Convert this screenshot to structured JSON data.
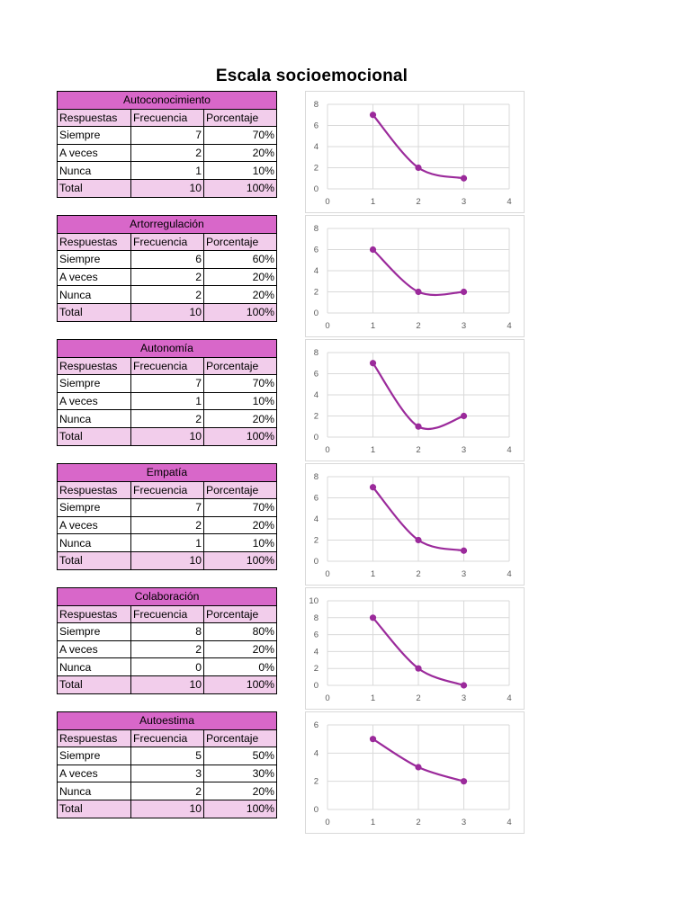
{
  "title": "Escala socioemocional",
  "column_headers": [
    "Respuestas",
    "Frecuencia",
    "Porcentaje"
  ],
  "colors": {
    "accent": "#d867c9",
    "light": "#f2cdeb",
    "line": "#9b2a9b",
    "grid": "#d9d9d9"
  },
  "sections": [
    {
      "name": "Autoconocimiento",
      "rows": [
        [
          "Siempre",
          "7",
          "70%"
        ],
        [
          "A veces",
          "2",
          "20%"
        ],
        [
          "Nunca",
          "1",
          "10%"
        ]
      ],
      "total": [
        "Total",
        "10",
        "100%"
      ]
    },
    {
      "name": "Artorregulación",
      "rows": [
        [
          "Siempre",
          "6",
          "60%"
        ],
        [
          "A veces",
          "2",
          "20%"
        ],
        [
          "Nunca",
          "2",
          "20%"
        ]
      ],
      "total": [
        "Total",
        "10",
        "100%"
      ]
    },
    {
      "name": "Autonomía",
      "rows": [
        [
          "Siempre",
          "7",
          "70%"
        ],
        [
          "A veces",
          "1",
          "10%"
        ],
        [
          "Nunca",
          "2",
          "20%"
        ]
      ],
      "total": [
        "Total",
        "10",
        "100%"
      ]
    },
    {
      "name": "Empatía",
      "rows": [
        [
          "Siempre",
          "7",
          "70%"
        ],
        [
          "A veces",
          "2",
          "20%"
        ],
        [
          "Nunca",
          "1",
          "10%"
        ]
      ],
      "total": [
        "Total",
        "10",
        "100%"
      ]
    },
    {
      "name": "Colaboración",
      "rows": [
        [
          "Siempre",
          "8",
          "80%"
        ],
        [
          "A veces",
          "2",
          "20%"
        ],
        [
          "Nunca",
          "0",
          "0%"
        ]
      ],
      "total": [
        "Total",
        "10",
        "100%"
      ]
    },
    {
      "name": "Autoestima",
      "rows": [
        [
          "Siempre",
          "5",
          "50%"
        ],
        [
          "A veces",
          "3",
          "30%"
        ],
        [
          "Nunca",
          "2",
          "20%"
        ]
      ],
      "total": [
        "Total",
        "10",
        "100%"
      ]
    }
  ],
  "chart_data": [
    {
      "type": "scatter",
      "title": "",
      "x": [
        1,
        2,
        3
      ],
      "y": [
        7,
        2,
        1
      ],
      "xlim": [
        0,
        4
      ],
      "ylim": [
        0,
        8
      ],
      "xticks": [
        0,
        1,
        2,
        3,
        4
      ],
      "yticks": [
        0,
        2,
        4,
        6,
        8
      ],
      "grid": true,
      "smooth": true
    },
    {
      "type": "scatter",
      "title": "",
      "x": [
        1,
        2,
        3
      ],
      "y": [
        6,
        2,
        2
      ],
      "xlim": [
        0,
        4
      ],
      "ylim": [
        0,
        8
      ],
      "xticks": [
        0,
        1,
        2,
        3,
        4
      ],
      "yticks": [
        0,
        2,
        4,
        6,
        8
      ],
      "grid": true,
      "smooth": true
    },
    {
      "type": "scatter",
      "title": "",
      "x": [
        1,
        2,
        3
      ],
      "y": [
        7,
        1,
        2
      ],
      "xlim": [
        0,
        4
      ],
      "ylim": [
        0,
        8
      ],
      "xticks": [
        0,
        1,
        2,
        3,
        4
      ],
      "yticks": [
        0,
        2,
        4,
        6,
        8
      ],
      "grid": true,
      "smooth": true
    },
    {
      "type": "scatter",
      "title": "",
      "x": [
        1,
        2,
        3
      ],
      "y": [
        7,
        2,
        1
      ],
      "xlim": [
        0,
        4
      ],
      "ylim": [
        0,
        8
      ],
      "xticks": [
        0,
        1,
        2,
        3,
        4
      ],
      "yticks": [
        0,
        2,
        4,
        6,
        8
      ],
      "grid": true,
      "smooth": true
    },
    {
      "type": "scatter",
      "title": "",
      "x": [
        1,
        2,
        3
      ],
      "y": [
        8,
        2,
        0
      ],
      "xlim": [
        0,
        4
      ],
      "ylim": [
        0,
        10
      ],
      "xticks": [
        0,
        1,
        2,
        3,
        4
      ],
      "yticks": [
        0,
        2,
        4,
        6,
        8,
        10
      ],
      "grid": true,
      "smooth": true
    },
    {
      "type": "scatter",
      "title": "",
      "x": [
        1,
        2,
        3
      ],
      "y": [
        5,
        3,
        2
      ],
      "xlim": [
        0,
        4
      ],
      "ylim": [
        0,
        6
      ],
      "xticks": [
        0,
        1,
        2,
        3,
        4
      ],
      "yticks": [
        0,
        2,
        4,
        6
      ],
      "grid": true,
      "smooth": true
    }
  ]
}
